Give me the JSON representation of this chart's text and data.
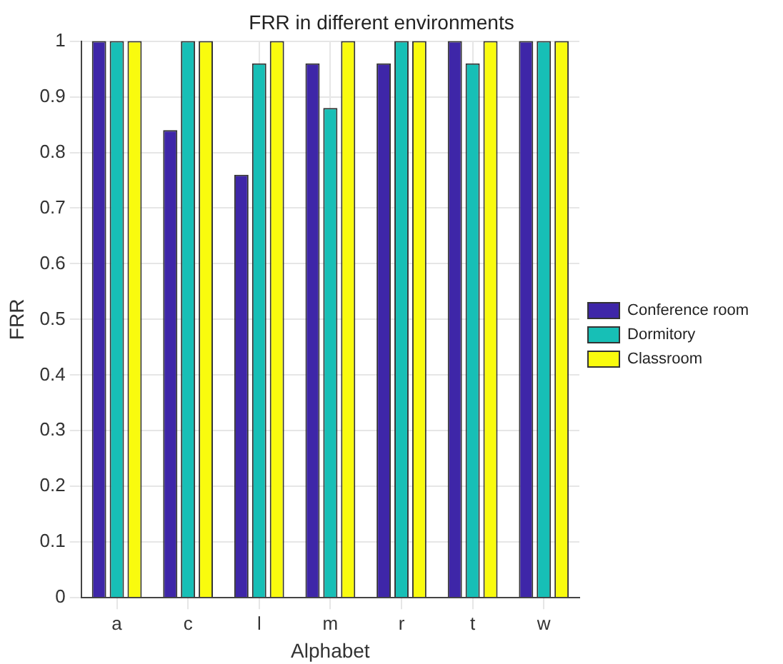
{
  "chart_data": {
    "type": "bar",
    "title": "FRR in different environments",
    "xlabel": "Alphabet",
    "ylabel": "FRR",
    "categories": [
      "a",
      "c",
      "l",
      "m",
      "r",
      "t",
      "w"
    ],
    "series": [
      {
        "name": "Conference room",
        "color": "#3e26a8",
        "values": [
          1,
          0.84,
          0.76,
          0.96,
          0.96,
          1,
          1
        ]
      },
      {
        "name": "Dormitory",
        "color": "#17bfb6",
        "values": [
          1,
          1,
          0.96,
          0.88,
          1,
          0.96,
          1
        ]
      },
      {
        "name": "Classroom",
        "color": "#f9fb0e",
        "values": [
          1,
          1,
          1,
          1,
          1,
          1,
          1
        ]
      }
    ],
    "ylim": [
      0,
      1
    ],
    "yticks": [
      0,
      0.1,
      0.2,
      0.3,
      0.4,
      0.5,
      0.6,
      0.7,
      0.8,
      0.9,
      1
    ],
    "grid": true,
    "legend": "right"
  }
}
